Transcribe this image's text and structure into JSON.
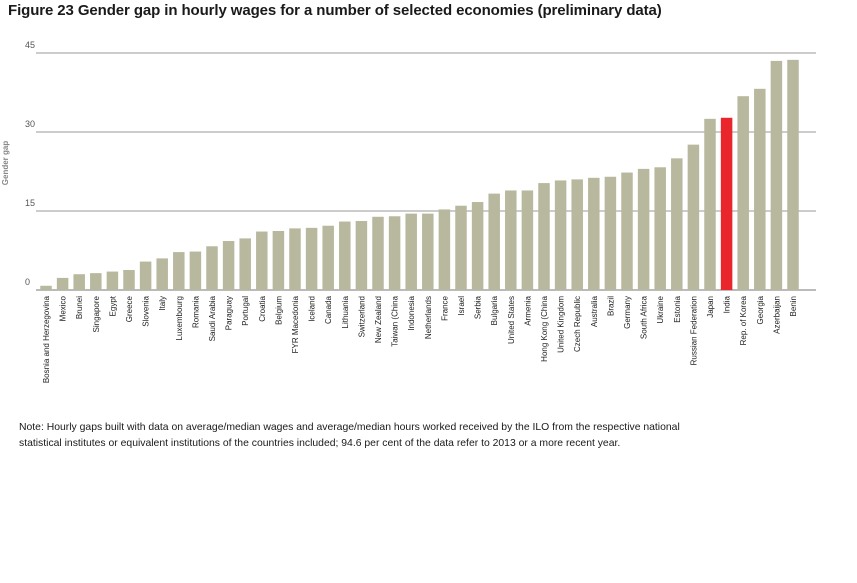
{
  "page": {
    "title": "Figure 23  Gender gap in hourly wages for a number of selected economies (preliminary data)",
    "note": "Note: Hourly gaps built with data on average/median wages and average/median hours worked received by the ILO from the respective national statistical institutes or equivalent institutions of the countries included; 94.6 per cent of the data refer to 2013 or a more recent year."
  },
  "colors": {
    "bar": "#b8b89e",
    "highlight": "#e8262b",
    "grid": "#9a9a9a"
  },
  "chart_data": {
    "type": "bar",
    "title": "Figure 23  Gender gap in hourly wages for a number of selected economies (preliminary data)",
    "ylabel": "Gender gap",
    "xlabel": "",
    "ylim": [
      0,
      45
    ],
    "yticks": [
      0,
      15,
      30,
      45
    ],
    "grid": true,
    "highlight": "India",
    "categories": [
      "Bosnia and Herzegovina",
      "Mexico",
      "Brunei",
      "Singapore",
      "Egypt",
      "Greece",
      "Slovenia",
      "Italy",
      "Luxembourg",
      "Romania",
      "Saudi Arabia",
      "Paraguay",
      "Portugal",
      "Croatia",
      "Belgium",
      "FYR Macedonia",
      "Iceland",
      "Canada",
      "Lithuania",
      "Switzerland",
      "New Zealand",
      "Taiwan (China",
      "Indonesia",
      "Netherlands",
      "France",
      "Israel",
      "Serbia",
      "Bulgaria",
      "United States",
      "Armenia",
      "Hong Kong (China",
      "United Kingdom",
      "Czech Republic",
      "Australia",
      "Brazil",
      "Germany",
      "South Africa",
      "Ukraine",
      "Estonia",
      "Russian Federation",
      "Japan",
      "India",
      "Rep. of Korea",
      "Georgia",
      "Azerbaijan",
      "Benin"
    ],
    "values": [
      0.8,
      2.3,
      3.0,
      3.2,
      3.5,
      3.8,
      5.4,
      6.0,
      7.2,
      7.3,
      8.3,
      9.3,
      9.8,
      11.1,
      11.2,
      11.7,
      11.8,
      12.2,
      13.0,
      13.1,
      13.9,
      14.0,
      14.5,
      14.5,
      15.3,
      16.0,
      16.7,
      18.3,
      18.9,
      18.9,
      20.3,
      20.8,
      21.0,
      21.3,
      21.5,
      22.3,
      23.0,
      23.3,
      25.0,
      27.6,
      32.5,
      32.7,
      36.8,
      38.2,
      43.5,
      43.7
    ]
  }
}
